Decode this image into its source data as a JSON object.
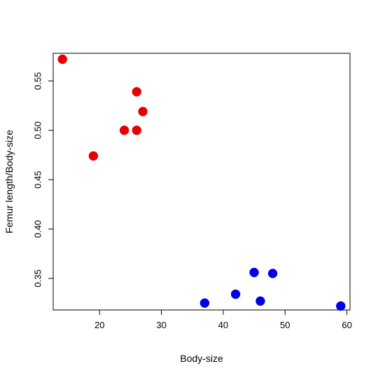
{
  "chart_data": {
    "type": "scatter",
    "xlabel": "Body-size",
    "ylabel": "Femur length/Body-size",
    "xlim": [
      12.5,
      60.5
    ],
    "ylim": [
      0.318,
      0.578
    ],
    "x_ticks": [
      20,
      30,
      40,
      50,
      60
    ],
    "y_ticks": [
      0.35,
      0.4,
      0.45,
      0.5,
      0.55
    ],
    "x_tick_labels": [
      "20",
      "30",
      "40",
      "50",
      "60"
    ],
    "y_tick_labels": [
      "0.35",
      "0.40",
      "0.45",
      "0.50",
      "0.55"
    ],
    "grid": false,
    "series": [
      {
        "color": "#e60000",
        "points": [
          {
            "x": 14,
            "y": 0.572
          },
          {
            "x": 19,
            "y": 0.474
          },
          {
            "x": 24,
            "y": 0.5
          },
          {
            "x": 26,
            "y": 0.5
          },
          {
            "x": 26,
            "y": 0.539
          },
          {
            "x": 27,
            "y": 0.519
          }
        ]
      },
      {
        "color": "#0000e6",
        "points": [
          {
            "x": 37,
            "y": 0.325
          },
          {
            "x": 42,
            "y": 0.334
          },
          {
            "x": 45,
            "y": 0.356
          },
          {
            "x": 46,
            "y": 0.327
          },
          {
            "x": 48,
            "y": 0.355
          },
          {
            "x": 59,
            "y": 0.322
          }
        ]
      }
    ]
  }
}
